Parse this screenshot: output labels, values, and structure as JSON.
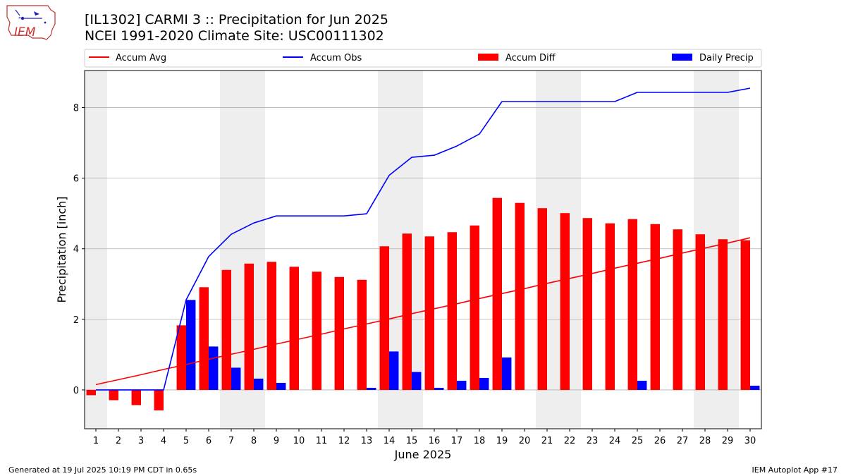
{
  "header": {
    "title_line1": "[IL1302] CARMI 3 :: Precipitation for Jun 2025",
    "title_line2": "NCEI 1991-2020 Climate Site: USC00111302",
    "logo_text": "IEM"
  },
  "footer": {
    "left": "Generated at 19 Jul 2025 10:19 PM CDT in 0.65s",
    "right": "IEM Autoplot App #17"
  },
  "chart_data": {
    "type": "bar",
    "xlabel": "June 2025",
    "ylabel": "Precipitation [inch]",
    "ylim": [
      -1.1,
      9.05
    ],
    "yticks": [
      0,
      2,
      4,
      6,
      8
    ],
    "grid": "horizontal",
    "legend_placement": "top, above plot",
    "categories": [
      "1",
      "2",
      "3",
      "4",
      "5",
      "6",
      "7",
      "8",
      "9",
      "10",
      "11",
      "12",
      "13",
      "14",
      "15",
      "16",
      "17",
      "18",
      "19",
      "20",
      "21",
      "22",
      "23",
      "24",
      "25",
      "26",
      "27",
      "28",
      "29",
      "30"
    ],
    "weekend_shaded_days": [
      1,
      7,
      8,
      14,
      15,
      21,
      22,
      28,
      29
    ],
    "colors": {
      "accum_avg": "#ff0000",
      "accum_obs": "#0000ff",
      "accum_diff": "#ff0000",
      "daily_precip": "#0000ff",
      "weekend_shade": "#eeeeee",
      "grid": "#b0b0b0"
    },
    "series": [
      {
        "name": "Accum Avg",
        "kind": "line",
        "values": [
          0.15,
          0.29,
          0.43,
          0.58,
          0.72,
          0.87,
          1.01,
          1.15,
          1.3,
          1.44,
          1.58,
          1.73,
          1.87,
          2.01,
          2.16,
          2.3,
          2.44,
          2.59,
          2.73,
          2.87,
          3.02,
          3.16,
          3.3,
          3.45,
          3.59,
          3.73,
          3.88,
          4.02,
          4.16,
          4.31
        ]
      },
      {
        "name": "Accum Obs",
        "kind": "line",
        "values": [
          0.0,
          0.0,
          0.0,
          0.0,
          2.55,
          3.78,
          4.41,
          4.73,
          4.93,
          4.93,
          4.93,
          4.93,
          4.99,
          6.08,
          6.59,
          6.65,
          6.91,
          7.25,
          8.17,
          8.17,
          8.17,
          8.17,
          8.17,
          8.17,
          8.43,
          8.43,
          8.43,
          8.43,
          8.43,
          8.55
        ]
      },
      {
        "name": "Accum Diff",
        "kind": "bar",
        "values": [
          -0.15,
          -0.29,
          -0.43,
          -0.58,
          1.83,
          2.91,
          3.4,
          3.58,
          3.63,
          3.49,
          3.35,
          3.2,
          3.12,
          4.07,
          4.43,
          4.35,
          4.47,
          4.66,
          5.44,
          5.3,
          5.15,
          5.01,
          4.87,
          4.72,
          4.84,
          4.7,
          4.55,
          4.41,
          4.27,
          4.24
        ]
      },
      {
        "name": "Daily Precip",
        "kind": "bar",
        "values": [
          0.0,
          0.0,
          0.0,
          0.0,
          2.55,
          1.23,
          0.63,
          0.32,
          0.2,
          0.0,
          0.0,
          0.0,
          0.06,
          1.09,
          0.51,
          0.06,
          0.26,
          0.34,
          0.92,
          0.0,
          0.0,
          0.0,
          0.0,
          0.0,
          0.26,
          0.0,
          0.0,
          0.0,
          0.0,
          0.12
        ]
      }
    ]
  }
}
